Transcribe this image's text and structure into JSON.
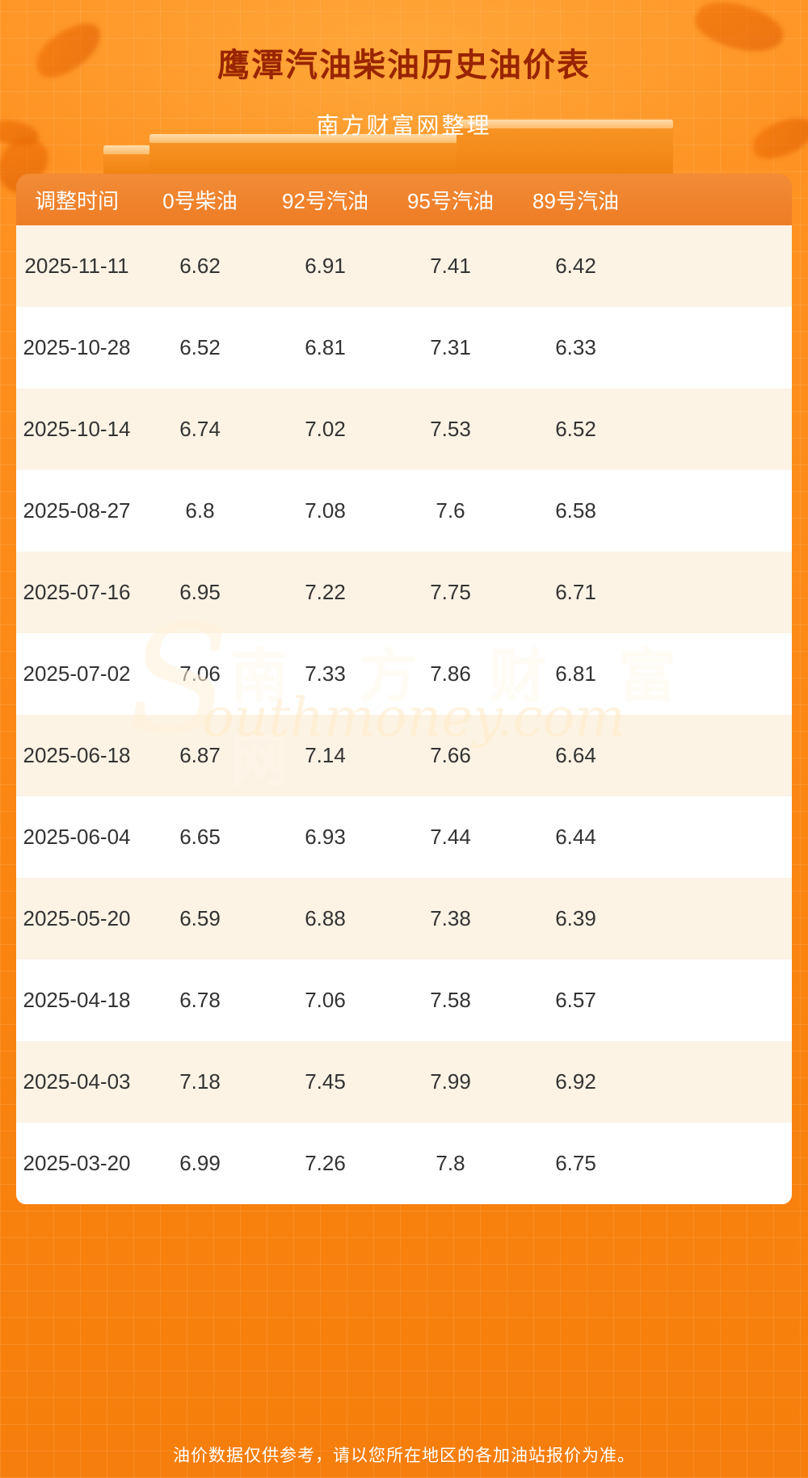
{
  "page": {
    "title": "鹰潭汽油柴油历史油价表",
    "subtitle": "南方财富网整理",
    "footer_note": "油价数据仅供参考，请以您所在地区的各加油站报价为准。"
  },
  "watermark": {
    "initial": "S",
    "cn": "南 方 财 富 网",
    "en": "outhmoney.com"
  },
  "table": {
    "headers": [
      "调整时间",
      "0号柴油",
      "92号汽油",
      "95号汽油",
      "89号汽油"
    ],
    "rows": [
      {
        "date": "2025-11-11",
        "values": [
          "6.62",
          "6.91",
          "7.41",
          "6.42"
        ]
      },
      {
        "date": "2025-10-28",
        "values": [
          "6.52",
          "6.81",
          "7.31",
          "6.33"
        ]
      },
      {
        "date": "2025-10-14",
        "values": [
          "6.74",
          "7.02",
          "7.53",
          "6.52"
        ]
      },
      {
        "date": "2025-08-27",
        "values": [
          "6.8",
          "7.08",
          "7.6",
          "6.58"
        ]
      },
      {
        "date": "2025-07-16",
        "values": [
          "6.95",
          "7.22",
          "7.75",
          "6.71"
        ]
      },
      {
        "date": "2025-07-02",
        "values": [
          "7.06",
          "7.33",
          "7.86",
          "6.81"
        ]
      },
      {
        "date": "2025-06-18",
        "values": [
          "6.87",
          "7.14",
          "7.66",
          "6.64"
        ]
      },
      {
        "date": "2025-06-04",
        "values": [
          "6.65",
          "6.93",
          "7.44",
          "6.44"
        ]
      },
      {
        "date": "2025-05-20",
        "values": [
          "6.59",
          "6.88",
          "7.38",
          "6.39"
        ]
      },
      {
        "date": "2025-04-18",
        "values": [
          "6.78",
          "7.06",
          "7.58",
          "6.57"
        ]
      },
      {
        "date": "2025-04-03",
        "values": [
          "7.18",
          "7.45",
          "7.99",
          "6.92"
        ]
      },
      {
        "date": "2025-03-20",
        "values": [
          "6.99",
          "7.26",
          "7.8",
          "6.75"
        ]
      }
    ]
  },
  "colors": {
    "background_orange": "#fb8a14",
    "header_orange": "#ee7d25",
    "row_cream": "#fdf3e4",
    "row_white": "#ffffff",
    "title_red": "#992400",
    "text_dark": "#333333"
  }
}
